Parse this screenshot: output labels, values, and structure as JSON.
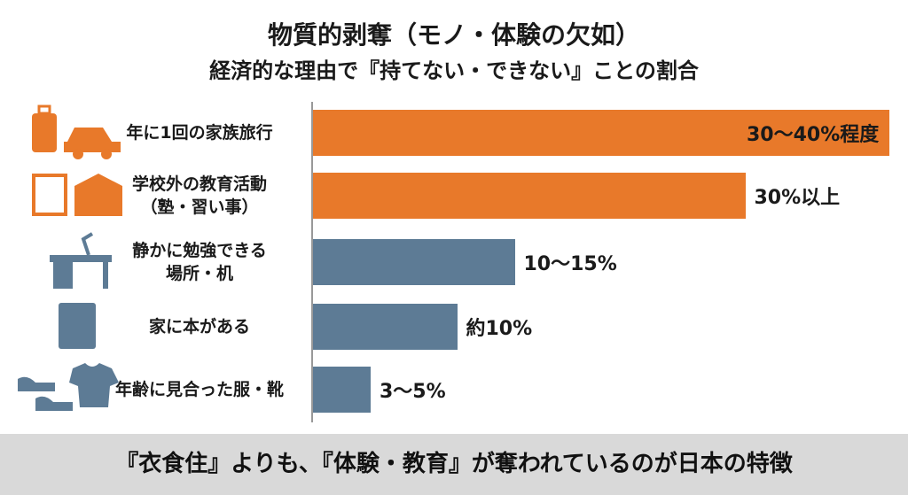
{
  "chart_data": {
    "type": "bar",
    "title": "物質的剥奪（モノ・体験の欠如）",
    "subtitle": "経済的な理由で『持てない・できない』ことの割合",
    "categories": [
      "年に1回の家族旅行",
      "学校外の教育活動\n（塾・習い事）",
      "静かに勉強できる\n場所・机",
      "家に本がある",
      "年齢に見合った服・靴"
    ],
    "values": [
      40,
      30,
      14,
      10,
      4
    ],
    "value_labels": [
      "30〜40%程度",
      "30%以上",
      "10〜15%",
      "約10%",
      "3〜5%"
    ],
    "colors": [
      "#e8792a",
      "#e8792a",
      "#5d7b95",
      "#5d7b95",
      "#5d7b95"
    ],
    "xlim": [
      0,
      40
    ],
    "annotation": "『衣食住』よりも、『体験・教育』が奪われているのが日本の特徴"
  }
}
